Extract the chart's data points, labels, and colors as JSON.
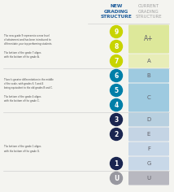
{
  "title_new": "NEW\nGRADING\nSTRUCTURE",
  "title_current": "CURRENT\nGRADING\nSTRUCTURE",
  "new_grades": [
    "9",
    "8",
    "7",
    "6",
    "5",
    "4",
    "3",
    "2",
    "1",
    "U"
  ],
  "new_grade_colors": [
    "#c8d400",
    "#c8d400",
    "#c8d400",
    "#0080a8",
    "#0080a8",
    "#0080a8",
    "#1a2a5e",
    "#1a2a5e",
    "#1a2a5e",
    "#a0a0a8"
  ],
  "current_spans": [
    {
      "label": "A+",
      "r_start": 0,
      "r_end": 1,
      "color": "#dde89a"
    },
    {
      "label": "A",
      "r_start": 2,
      "r_end": 2,
      "color": "#e8edb8"
    },
    {
      "label": "B",
      "r_start": 3,
      "r_end": 3,
      "color": "#9cc8e0"
    },
    {
      "label": "C",
      "r_start": 4,
      "r_end": 5,
      "color": "#9cc8e0"
    },
    {
      "label": "D",
      "r_start": 6,
      "r_end": 6,
      "color": "#b8d0e0"
    },
    {
      "label": "E",
      "r_start": 7,
      "r_end": 7,
      "color": "#c8d8e4"
    },
    {
      "label": "F",
      "r_start": 8,
      "r_end": 8,
      "color": "#c8d8e4"
    },
    {
      "label": "G",
      "r_start": 9,
      "r_end": 9,
      "color": "#c8d8e4"
    },
    {
      "label": "U",
      "r_start": 10,
      "r_end": 10,
      "color": "#c0c0c4"
    }
  ],
  "sep_lines_after": [
    2,
    5,
    9
  ],
  "background_color": "#f4f4f0",
  "new_col_header_color": "#1a5a9a",
  "cur_col_header_color": "#a0a0a0"
}
